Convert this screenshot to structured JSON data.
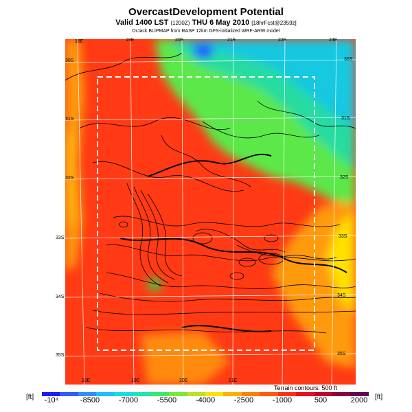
{
  "header": {
    "title": "OvercastDevelopment Potential",
    "valid_main": "Valid 1400 LST",
    "valid_paren": "(1200Z)",
    "valid_date": "THU 6 May 2010",
    "forecast": "[18hrFcst@2359z]",
    "model_line": "DrJack BLIPMAP from RASP 12km GFS-initialized WRF-ARW model"
  },
  "map": {
    "lon_labels": [
      "18E",
      "19E",
      "20E",
      "21E",
      "22E",
      "23E"
    ],
    "lat_labels": [
      "30S",
      "31S",
      "32S",
      "33S",
      "34S",
      "35S"
    ],
    "contour_note": "Terrain contours: 500 ft"
  },
  "colorbar": {
    "unit_left": "[ft]",
    "unit_right": "[ft]",
    "tick_labels": [
      "-10⁴",
      "-8500",
      "-7000",
      "-5500",
      "-4000",
      "-2500",
      "-1000",
      "500",
      "2000"
    ],
    "colors": [
      "#1a1aff",
      "#2f5cff",
      "#2f8fff",
      "#1fbfff",
      "#18dde0",
      "#1fe6b0",
      "#3ce86a",
      "#7ae83a",
      "#bfe028",
      "#ffe000",
      "#ffb000",
      "#ff8000",
      "#ff5a10",
      "#ff3018",
      "#e81020",
      "#c00028",
      "#8c0040",
      "#600050"
    ]
  }
}
